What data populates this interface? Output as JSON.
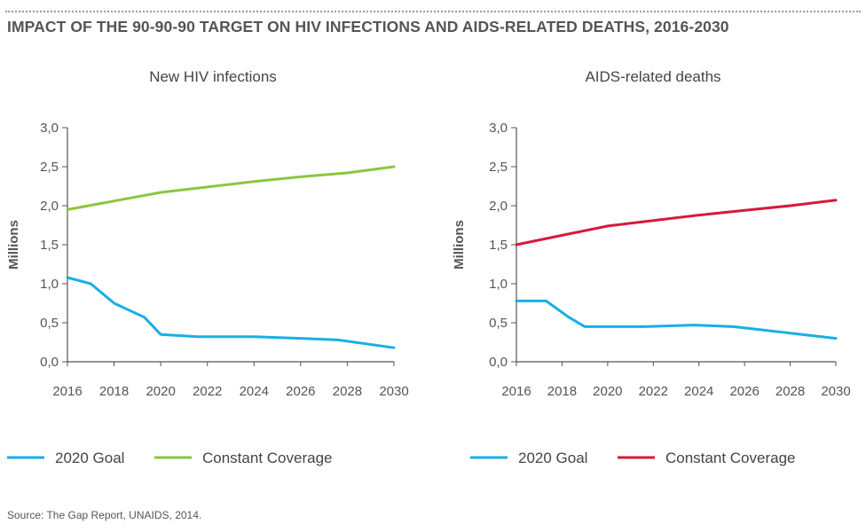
{
  "title": "IMPACT OF THE 90-90-90 TARGET ON HIV INFECTIONS AND AIDS-RELATED DEATHS, 2016-2030",
  "source": "Source: The Gap Report, UNAIDS, 2014.",
  "colors": {
    "goal": "#1aaee6",
    "coverage_infections": "#8cc63f",
    "coverage_deaths": "#d7193b",
    "axis": "#555555"
  },
  "chart_data": [
    {
      "type": "line",
      "title": "New HIV infections",
      "ylabel": "Millions",
      "xlabel": "",
      "ylim": [
        0,
        3.0
      ],
      "y_ticks": [
        "0,0",
        "0,5",
        "1,0",
        "1,5",
        "2,0",
        "2,5",
        "3,0"
      ],
      "x_ticks": [
        "2016",
        "2018",
        "2020",
        "2022",
        "2024",
        "2026",
        "2028",
        "2030"
      ],
      "grid": false,
      "legend_position": "bottom",
      "series": [
        {
          "name": "2020 Goal",
          "color": "#1aaee6",
          "x": [
            2016,
            2017,
            2018,
            2019.3,
            2020,
            2021.6,
            2024,
            2026,
            2027.6,
            2030
          ],
          "y": [
            1.08,
            1.0,
            0.75,
            0.57,
            0.35,
            0.32,
            0.32,
            0.3,
            0.28,
            0.18
          ]
        },
        {
          "name": "Constant Coverage",
          "color": "#8cc63f",
          "x": [
            2016,
            2018,
            2020,
            2022,
            2024,
            2026,
            2028,
            2030
          ],
          "y": [
            1.95,
            2.06,
            2.17,
            2.24,
            2.31,
            2.37,
            2.42,
            2.5
          ]
        }
      ]
    },
    {
      "type": "line",
      "title": "AIDS-related deaths",
      "ylabel": "Millions",
      "xlabel": "",
      "ylim": [
        0,
        3.0
      ],
      "y_ticks": [
        "0,0",
        "0,5",
        "1,0",
        "1,5",
        "2,0",
        "2,5",
        "3,0"
      ],
      "x_ticks": [
        "2016",
        "2018",
        "2020",
        "2022",
        "2024",
        "2026",
        "2028",
        "2030"
      ],
      "grid": false,
      "legend_position": "bottom",
      "series": [
        {
          "name": "2020 Goal",
          "color": "#1aaee6",
          "x": [
            2016,
            2017.3,
            2018.3,
            2019,
            2020,
            2021.6,
            2023.8,
            2025.5,
            2030
          ],
          "y": [
            0.78,
            0.78,
            0.57,
            0.45,
            0.45,
            0.45,
            0.47,
            0.45,
            0.3
          ]
        },
        {
          "name": "Constant Coverage",
          "color": "#d7193b",
          "x": [
            2016,
            2018,
            2020,
            2022,
            2024,
            2026,
            2028,
            2030
          ],
          "y": [
            1.5,
            1.62,
            1.74,
            1.81,
            1.88,
            1.94,
            2.0,
            2.07
          ]
        }
      ]
    }
  ]
}
